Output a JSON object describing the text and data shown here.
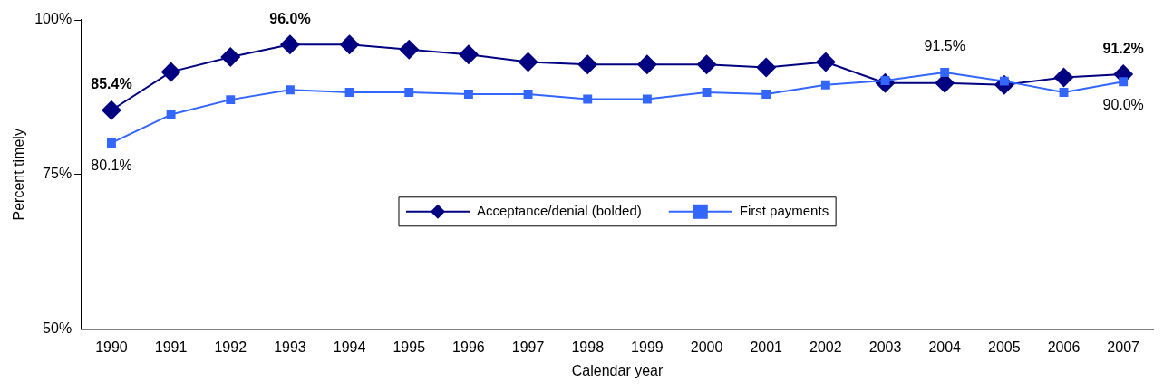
{
  "chart_data": {
    "type": "line",
    "xlabel": "Calendar year",
    "ylabel": "Percent timely",
    "categories": [
      "1990",
      "1991",
      "1992",
      "1993",
      "1994",
      "1995",
      "1996",
      "1997",
      "1998",
      "1999",
      "2000",
      "2001",
      "2002",
      "2003",
      "2004",
      "2005",
      "2006",
      "2007"
    ],
    "series": [
      {
        "name": "Acceptance/denial (bolded)",
        "color": "#000080",
        "marker": "diamond",
        "values": [
          85.4,
          91.6,
          94.0,
          96.0,
          96.0,
          95.2,
          94.4,
          93.2,
          92.8,
          92.8,
          92.8,
          92.3,
          93.2,
          89.8,
          89.8,
          89.5,
          90.7,
          91.2
        ],
        "value_labels": [
          "85.4%",
          null,
          null,
          "96.0%",
          null,
          null,
          null,
          null,
          null,
          null,
          null,
          null,
          null,
          null,
          null,
          null,
          null,
          "91.2%"
        ]
      },
      {
        "name": "First payments",
        "color": "#3366ff",
        "marker": "square",
        "values": [
          80.1,
          84.7,
          87.1,
          88.7,
          88.3,
          88.3,
          88.0,
          88.0,
          87.2,
          87.2,
          88.3,
          88.0,
          89.5,
          90.2,
          91.5,
          90.1,
          88.3,
          90.0
        ],
        "value_labels": [
          "80.1%",
          null,
          null,
          null,
          null,
          null,
          null,
          null,
          null,
          null,
          null,
          null,
          null,
          null,
          "91.5%",
          null,
          null,
          "90.0%"
        ]
      }
    ],
    "ylim": [
      50,
      100
    ],
    "yticks": [
      {
        "value": 50,
        "label": "50%"
      },
      {
        "value": 75,
        "label": "75%"
      },
      {
        "value": 100,
        "label": "100%"
      }
    ],
    "grid": false,
    "legend": "center",
    "line_style": "solid"
  }
}
